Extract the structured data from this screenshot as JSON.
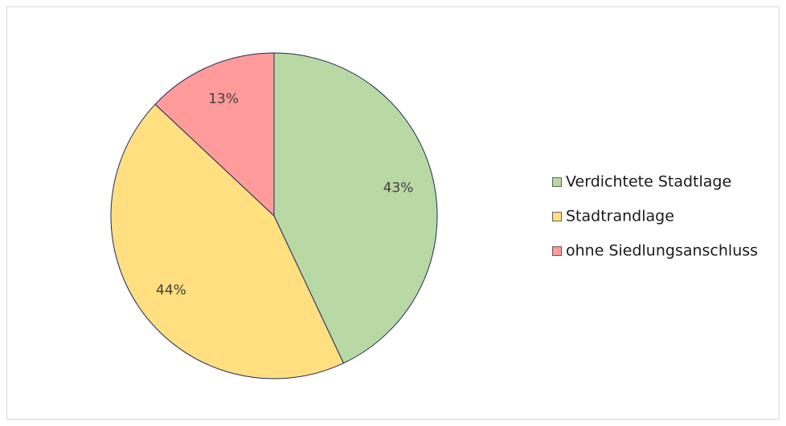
{
  "chart_data": {
    "type": "pie",
    "categories": [
      "Verdichtete Stadtlage",
      "Stadtrandlage",
      "ohne Siedlungsanschluss"
    ],
    "values": [
      43,
      44,
      13
    ],
    "value_labels": [
      "43%",
      "44%",
      "13%"
    ],
    "colors": [
      "#b9d9a4",
      "#ffdf80",
      "#ff9b9b"
    ],
    "legend": "right"
  }
}
